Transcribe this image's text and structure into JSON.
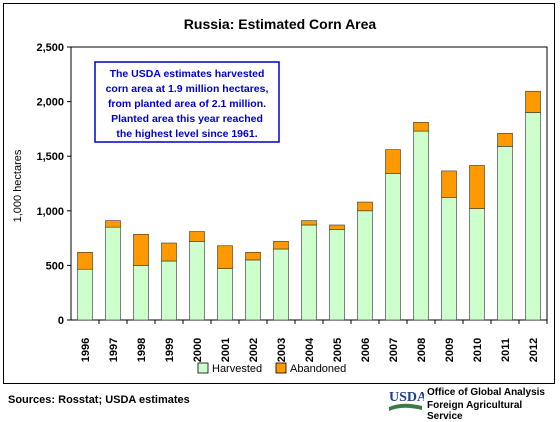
{
  "chart_data": {
    "type": "bar",
    "stacked": true,
    "title": "Russia:  Estimated Corn Area",
    "ylabel": "1,000 hectares",
    "xlabel": "",
    "ylim": [
      0,
      2500
    ],
    "yticks": [
      0,
      500,
      1000,
      1500,
      2000,
      2500
    ],
    "ytick_labels": [
      "0",
      "500",
      "1,000",
      "1,500",
      "2,000",
      "2,500"
    ],
    "grid": false,
    "legend_position": "bottom",
    "categories": [
      "1996",
      "1997",
      "1998",
      "1999",
      "2000",
      "2001",
      "2002",
      "2003",
      "2004",
      "2005",
      "2006",
      "2007",
      "2008",
      "2009",
      "2010",
      "2011",
      "2012"
    ],
    "series": [
      {
        "name": "Harvested",
        "color": "#ccffcc",
        "values": [
          465,
          850,
          500,
          540,
          720,
          470,
          550,
          650,
          870,
          830,
          1000,
          1340,
          1730,
          1120,
          1020,
          1590,
          1900
        ]
      },
      {
        "name": "Abandoned",
        "color": "#ff9900",
        "values": [
          155,
          60,
          285,
          165,
          90,
          210,
          70,
          70,
          40,
          40,
          80,
          220,
          80,
          245,
          395,
          120,
          195
        ]
      }
    ],
    "annotation": [
      "The USDA estimates harvested",
      "corn area at 1.9 million hectares,",
      "from planted area of 2.1 million.",
      "Planted area this year reached",
      "the highest level since 1961."
    ]
  },
  "footer": {
    "sources": "Sources:  Rosstat; USDA estimates",
    "usda_logo": "USDA",
    "org_line1": "Office of Global Analysis",
    "org_line2": "Foreign Agricultural Service"
  },
  "colors": {
    "annotation_text": "#0000cc",
    "annotation_border": "#0000cc",
    "usda_green": "#3a7d44",
    "usda_blue": "#1f3f8f"
  }
}
